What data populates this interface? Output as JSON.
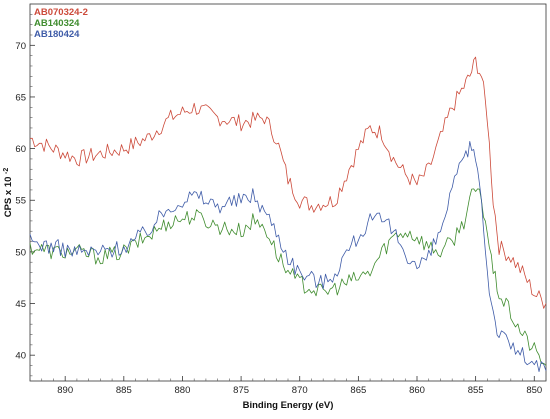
{
  "chart_data": {
    "type": "line",
    "title": "",
    "xlabel": "Binding Energy (eV)",
    "ylabel_main": "CPS x 10",
    "ylabel_exp": "-2",
    "xlim": [
      893,
      849
    ],
    "ylim": [
      37.5,
      74
    ],
    "x_ticks": [
      890,
      885,
      880,
      875,
      870,
      865,
      860,
      855,
      850
    ],
    "x_tick_labels": [
      "890",
      "885",
      "880",
      "875",
      "870",
      "865",
      "860",
      "855",
      "850"
    ],
    "y_ticks": [
      40,
      45,
      50,
      55,
      60,
      65,
      70
    ],
    "y_tick_labels": [
      "40",
      "45",
      "50",
      "55",
      "60",
      "65",
      "70"
    ],
    "legend_position": "top-left",
    "grid": false,
    "series": [
      {
        "name": "AB070324-2",
        "color": "#cc4a3a",
        "x": [
          893,
          891,
          889,
          887,
          885,
          883,
          881,
          879,
          877,
          875,
          873,
          872,
          871,
          870,
          869,
          867,
          866,
          865,
          864,
          863,
          862,
          861,
          860,
          859,
          858,
          857,
          856,
          855.5,
          855,
          854.5,
          854,
          853.5,
          853,
          852,
          851,
          850,
          849
        ],
        "y": [
          61,
          60,
          59,
          59.5,
          60,
          61,
          63,
          64,
          63,
          62.5,
          63,
          61,
          57,
          55,
          54.5,
          55,
          57.5,
          60,
          62,
          61.5,
          59,
          57.5,
          56.5,
          58,
          61,
          64,
          66,
          67,
          68.5,
          67,
          63,
          55,
          50.5,
          49.5,
          48,
          46,
          45
        ]
      },
      {
        "name": "AB140324",
        "color": "#3f8c2e",
        "x": [
          893,
          891,
          889,
          887,
          885,
          883,
          881,
          879,
          877,
          875,
          874,
          873,
          872,
          871,
          870,
          869,
          868,
          867,
          866,
          865,
          864,
          863,
          862,
          861,
          860,
          859,
          858,
          857,
          856,
          855.5,
          855,
          854.5,
          854,
          853.5,
          853,
          852,
          851,
          850,
          849
        ],
        "y": [
          50.5,
          50,
          50,
          49.5,
          50,
          51.5,
          53,
          53.5,
          52.5,
          52,
          53,
          52.5,
          50,
          48,
          47,
          46.5,
          46,
          46.5,
          47,
          47.5,
          48,
          50,
          51.5,
          52,
          51.5,
          50.5,
          50,
          51,
          53,
          55,
          56,
          55,
          52,
          48,
          46,
          44,
          42,
          40.5,
          39
        ]
      },
      {
        "name": "AB180424",
        "color": "#3f5ca8",
        "x": [
          893,
          891,
          889,
          887,
          885,
          883,
          881,
          879,
          877,
          875,
          874,
          873,
          872,
          871,
          870,
          869,
          868,
          867,
          866,
          865,
          864,
          863,
          862,
          861,
          860,
          859,
          858,
          857,
          856,
          855.5,
          855,
          854.5,
          854,
          853.5,
          853,
          852,
          851,
          850,
          849
        ],
        "y": [
          51,
          50.5,
          50,
          50,
          50.5,
          52,
          54.5,
          55.5,
          54.5,
          55,
          55.5,
          54,
          52,
          49.5,
          48,
          47.5,
          47,
          48,
          50,
          51.5,
          53,
          53,
          52,
          50,
          48.5,
          49.5,
          52,
          56,
          59,
          60,
          59.5,
          55,
          48,
          44,
          42,
          41,
          40,
          39,
          38.5
        ]
      }
    ]
  }
}
